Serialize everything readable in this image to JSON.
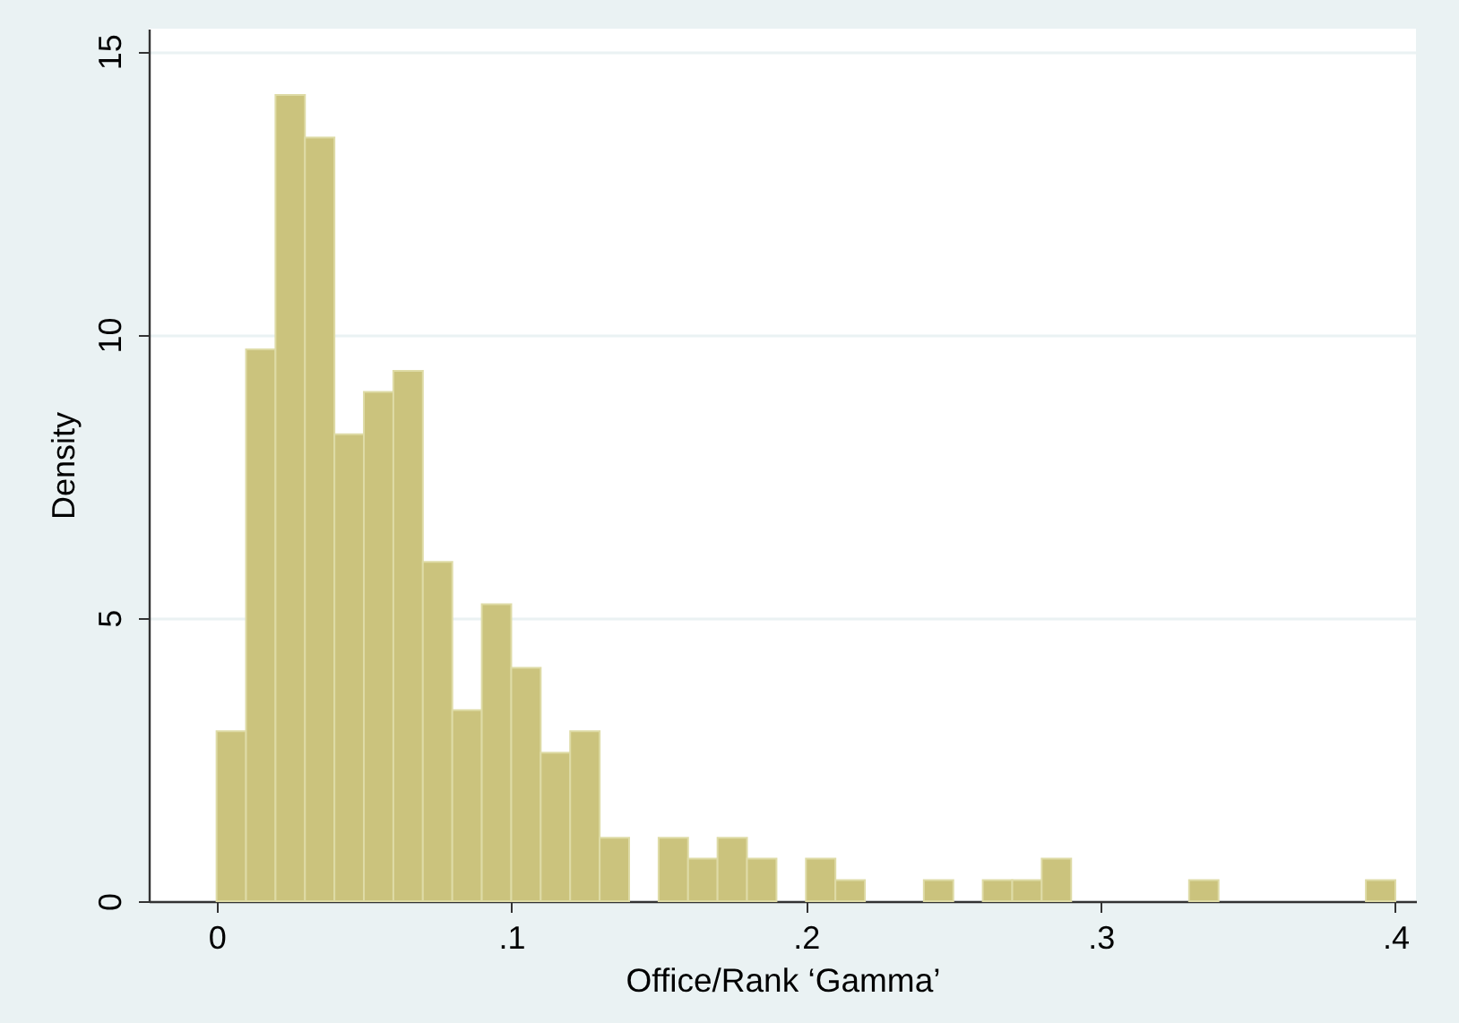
{
  "chart_data": {
    "type": "histogram",
    "xlabel": "Office/Rank ‘Gamma’",
    "ylabel": "Density",
    "bins": [
      0,
      0.01,
      0.02,
      0.03,
      0.04,
      0.05,
      0.06,
      0.07,
      0.08,
      0.09,
      0.1,
      0.11,
      0.12,
      0.13,
      0.14,
      0.15,
      0.16,
      0.17,
      0.18,
      0.19,
      0.2,
      0.21,
      0.22,
      0.23,
      0.24,
      0.25,
      0.26,
      0.27,
      0.28,
      0.29,
      0.3,
      0.31,
      0.32,
      0.33,
      0.34,
      0.35,
      0.36,
      0.37,
      0.38,
      0.39,
      0.4
    ],
    "values": [
      3.0,
      9.74,
      14.23,
      13.48,
      8.24,
      8.99,
      9.36,
      5.99,
      3.37,
      5.24,
      4.12,
      2.62,
      3.0,
      1.12,
      0,
      1.12,
      0.75,
      1.12,
      0.75,
      0,
      0.75,
      0.37,
      0,
      0,
      0.37,
      0,
      0.37,
      0.37,
      0.75,
      0,
      0,
      0,
      0,
      0.37,
      0,
      0,
      0,
      0,
      0,
      0.37
    ],
    "color": "#cbc37d",
    "xlim": [
      -0.023,
      0.407
    ],
    "ylim": [
      0,
      15.4
    ],
    "xticks": [
      0,
      {
        "value": 0.1,
        "label": ".1"
      },
      {
        "value": 0.2,
        "label": ".2"
      },
      {
        "value": 0.3,
        "label": ".3"
      },
      {
        "value": 0.4,
        "label": ".4"
      }
    ],
    "yticks": [
      0,
      5,
      10,
      15
    ],
    "grid": "y"
  }
}
